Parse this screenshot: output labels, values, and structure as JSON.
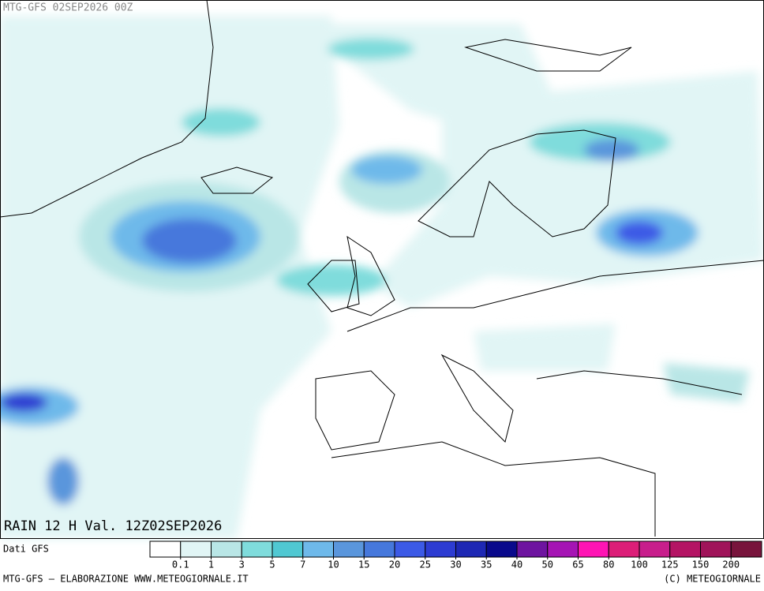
{
  "header": {
    "model_run": "MTG-GFS 02SEP2026 00Z"
  },
  "map": {
    "field_label": "RAIN 12 H Val. 12Z02SEP2026"
  },
  "colorbar": {
    "source": "Dati GFS",
    "colors": [
      "#ffffff",
      "#e1f5f5",
      "#b9e6e6",
      "#7fdcdc",
      "#50c8d2",
      "#6eb9ea",
      "#5a96dc",
      "#4678dc",
      "#3c5ae6",
      "#2d3cd2",
      "#1e28b4",
      "#0a0a8c",
      "#6e14a0",
      "#a514b4",
      "#ff14b4",
      "#dc1e78",
      "#c81e8c",
      "#b41464",
      "#a0145a",
      "#78143c"
    ],
    "levels": [
      0.1,
      1,
      3,
      5,
      7,
      10,
      15,
      20,
      25,
      30,
      35,
      40,
      50,
      65,
      80,
      100,
      125,
      150,
      200
    ]
  },
  "footer": {
    "left": "MTG-GFS — ELABORAZIONE WWW.METEOGIORNALE.IT",
    "right": "(C) METEOGIORNALE"
  }
}
